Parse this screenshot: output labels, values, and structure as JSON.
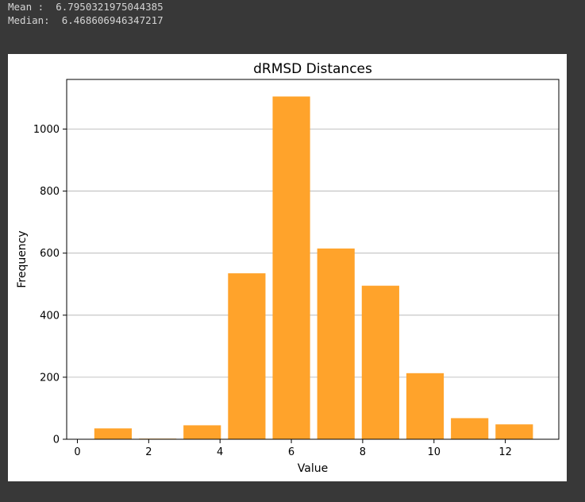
{
  "console": {
    "lines": [
      "Mean :  6.7950321975044385",
      "Median:  6.468606946347217"
    ]
  },
  "colors": {
    "bar": "#ffa32b",
    "background": "#383838",
    "grid": "#b0b0b0"
  },
  "chart_data": {
    "type": "bar",
    "title": "dRMSD Distances",
    "xlabel": "Value",
    "ylabel": "Frequency",
    "xlim": [
      -0.3,
      13.5
    ],
    "ylim": [
      0,
      1160
    ],
    "xticks": [
      0,
      2,
      4,
      6,
      8,
      10,
      12
    ],
    "yticks": [
      0,
      200,
      400,
      600,
      800,
      1000
    ],
    "grid": "y",
    "bars": [
      {
        "x": 1,
        "value": 35
      },
      {
        "x": 2.25,
        "value": 2
      },
      {
        "x": 3.5,
        "value": 45
      },
      {
        "x": 4.75,
        "value": 535
      },
      {
        "x": 6,
        "value": 1105
      },
      {
        "x": 7.25,
        "value": 615
      },
      {
        "x": 8.5,
        "value": 495
      },
      {
        "x": 9.75,
        "value": 213
      },
      {
        "x": 11,
        "value": 68
      },
      {
        "x": 12.25,
        "value": 48
      }
    ],
    "bar_width": 1.05
  }
}
